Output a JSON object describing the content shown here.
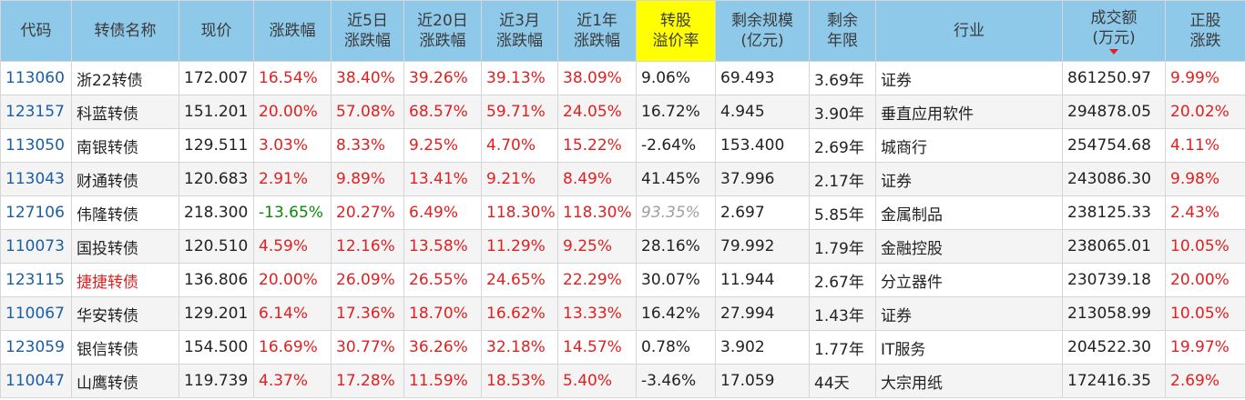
{
  "colors": {
    "header_bg": "#8fc9ea",
    "highlight": "#ffff00",
    "up": "#e02020",
    "down": "#0a8a0a",
    "code": "#1a5ea8",
    "muted": "#a0a0a0"
  },
  "headers": [
    "代码",
    "转债名称",
    "现价",
    "涨跌幅",
    "近5日\n涨跌幅",
    "近20日\n涨跌幅",
    "近3月\n涨跌幅",
    "近1年\n涨跌幅",
    "转股\n溢价率",
    "剩余规模\n(亿元)",
    "剩余\n年限",
    "行业",
    "成交额\n(万元)",
    "正股\n涨跌"
  ],
  "rows": [
    [
      "113060",
      "浙22转债",
      "172.007",
      "16.54%",
      "38.40%",
      "39.26%",
      "39.13%",
      "38.09%",
      "9.06%",
      "69.493",
      "3.69年",
      "证券",
      "861250.97",
      "9.99%"
    ],
    [
      "123157",
      "科蓝转债",
      "151.201",
      "20.00%",
      "57.08%",
      "68.57%",
      "59.71%",
      "24.05%",
      "16.72%",
      "4.945",
      "3.90年",
      "垂直应用软件",
      "294878.05",
      "20.02%"
    ],
    [
      "113050",
      "南银转债",
      "129.511",
      "3.03%",
      "8.33%",
      "9.25%",
      "4.70%",
      "15.22%",
      "-2.64%",
      "153.400",
      "2.69年",
      "城商行",
      "254754.68",
      "4.11%"
    ],
    [
      "113043",
      "财通转债",
      "120.683",
      "2.91%",
      "9.89%",
      "13.41%",
      "9.21%",
      "8.49%",
      "41.45%",
      "37.996",
      "2.17年",
      "证券",
      "243086.30",
      "9.98%"
    ],
    [
      "127106",
      "伟隆转债",
      "218.300",
      "-13.65%",
      "20.27%",
      "6.49%",
      "118.30%",
      "118.30%",
      "93.35%",
      "2.697",
      "5.85年",
      "金属制品",
      "238125.33",
      "2.43%"
    ],
    [
      "110073",
      "国投转债",
      "120.510",
      "4.59%",
      "12.16%",
      "13.58%",
      "11.29%",
      "9.25%",
      "28.16%",
      "79.992",
      "1.79年",
      "金融控股",
      "238065.01",
      "10.05%"
    ],
    [
      "123115",
      "捷捷转债",
      "136.806",
      "20.00%",
      "26.09%",
      "26.55%",
      "24.65%",
      "22.29%",
      "30.07%",
      "11.944",
      "2.67年",
      "分立器件",
      "230739.18",
      "20.00%"
    ],
    [
      "110067",
      "华安转债",
      "129.201",
      "6.14%",
      "17.36%",
      "18.70%",
      "16.62%",
      "13.33%",
      "16.42%",
      "27.994",
      "1.43年",
      "证券",
      "213058.99",
      "10.05%"
    ],
    [
      "123059",
      "银信转债",
      "154.500",
      "16.69%",
      "30.77%",
      "36.26%",
      "32.18%",
      "14.57%",
      "0.78%",
      "3.902",
      "1.77年",
      "IT服务",
      "204522.30",
      "19.97%"
    ],
    [
      "110047",
      "山鹰转债",
      "119.739",
      "4.37%",
      "17.28%",
      "11.59%",
      "18.53%",
      "5.40%",
      "-3.46%",
      "17.059",
      "44天",
      "大宗用纸",
      "172416.35",
      "2.69%"
    ]
  ],
  "red_names": [
    "123115"
  ],
  "muted_cells": [
    [
      4,
      8
    ]
  ],
  "sorted_column": 12
}
